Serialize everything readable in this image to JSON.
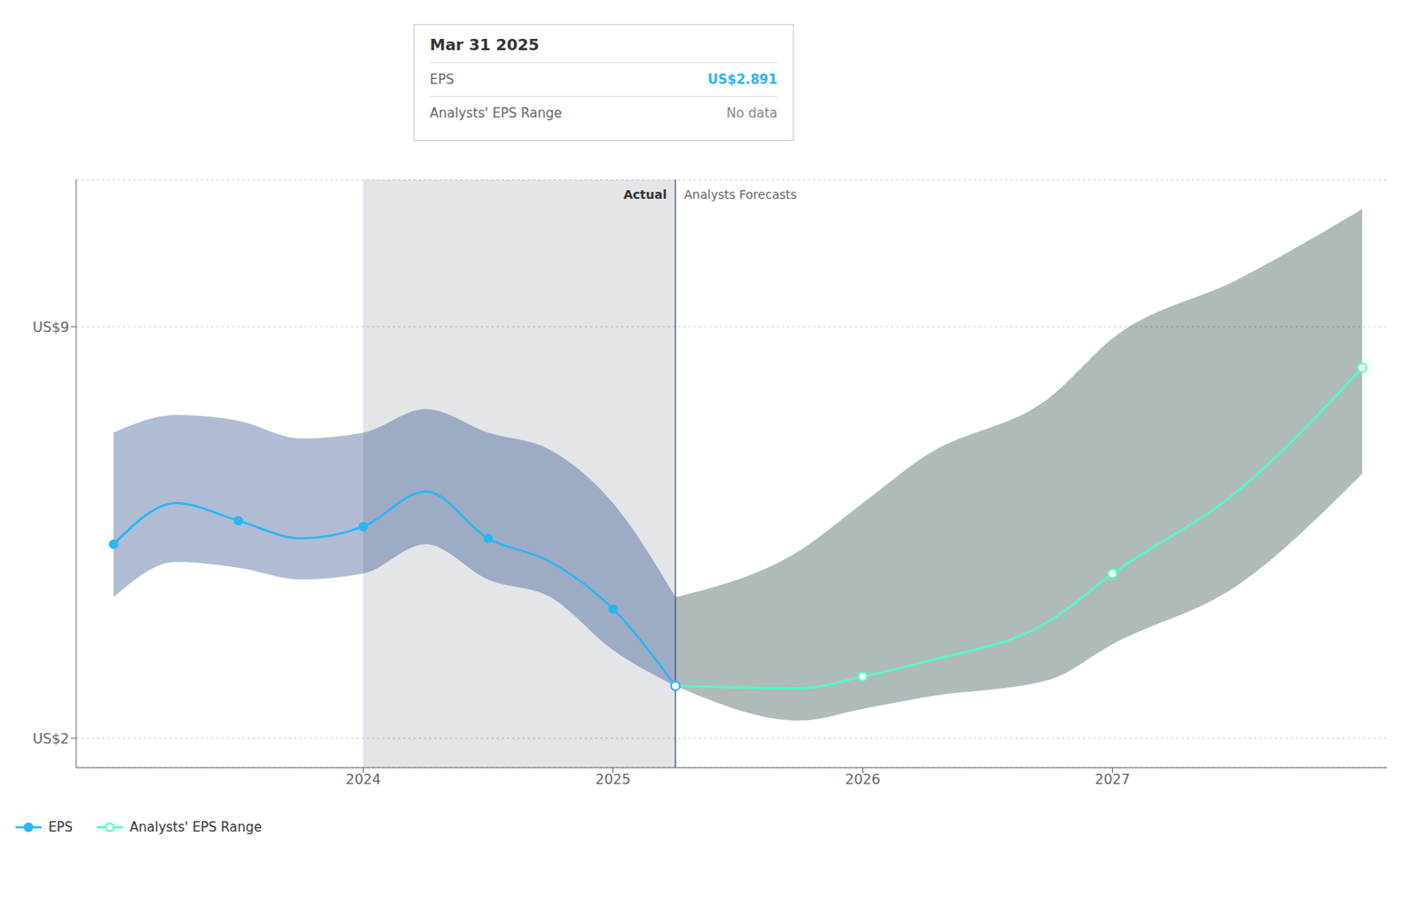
{
  "chart_data": {
    "type": "line",
    "xlim": [
      2022.85,
      2028.1
    ],
    "xticks": [
      2024,
      2025,
      2026,
      2027
    ],
    "ylim": [
      1.5,
      11.5
    ],
    "yticks": [
      {
        "value": 2,
        "label": "US$2"
      },
      {
        "value": 9,
        "label": "US$9"
      }
    ],
    "grid": true,
    "legend": "bottom left",
    "series": [
      {
        "name": "EPS",
        "color": "#29b6f6",
        "marker": "circle",
        "x": [
          2023.0,
          2023.25,
          2023.5,
          2023.75,
          2024.0,
          2024.25,
          2024.5,
          2024.75,
          2025.0,
          2025.25
        ],
        "values": [
          5.3,
          6.0,
          5.7,
          5.4,
          5.6,
          6.2,
          5.4,
          5.0,
          4.2,
          2.891
        ],
        "range_upper": [
          7.2,
          7.5,
          7.4,
          7.1,
          7.2,
          7.6,
          7.2,
          6.9,
          6.0,
          4.4
        ],
        "range_lower": [
          4.4,
          5.0,
          4.9,
          4.7,
          4.8,
          5.3,
          4.7,
          4.4,
          3.5,
          2.891
        ],
        "range_color": "#1e4080",
        "marker_x": [
          2023.0,
          2023.5,
          2024.0,
          2024.5,
          2025.0,
          2025.25
        ]
      },
      {
        "name": "Analysts' EPS Range",
        "color": "#4dffc8",
        "marker": "hollow",
        "x": [
          2025.25,
          2025.75,
          2026.0,
          2026.25,
          2026.75,
          2027.0,
          2027.5,
          2028.0
        ],
        "values": [
          2.891,
          2.85,
          3.05,
          3.3,
          4.0,
          4.8,
          6.2,
          8.3
        ],
        "range_upper": [
          4.4,
          5.2,
          6.0,
          6.8,
          7.8,
          8.8,
          9.8,
          11.0
        ],
        "range_lower": [
          2.891,
          2.3,
          2.5,
          2.7,
          3.0,
          3.6,
          4.6,
          6.5
        ],
        "range_color": "#1a3d3a",
        "marker_x": [
          2026.0,
          2027.0,
          2028.0
        ]
      }
    ],
    "highlight": {
      "x": [
        2024.0,
        2025.25
      ],
      "color": "#1c2d47"
    },
    "divider": {
      "x": 2025.25,
      "color": "#3a4a60"
    },
    "annotations": [
      "Actual",
      "Analysts Forecasts"
    ],
    "tooltip": {
      "title": "Mar 31 2025",
      "rows": [
        {
          "label": "EPS",
          "value": "US$2.891"
        },
        {
          "label": "Analysts' EPS Range",
          "value": "No data"
        }
      ]
    }
  }
}
